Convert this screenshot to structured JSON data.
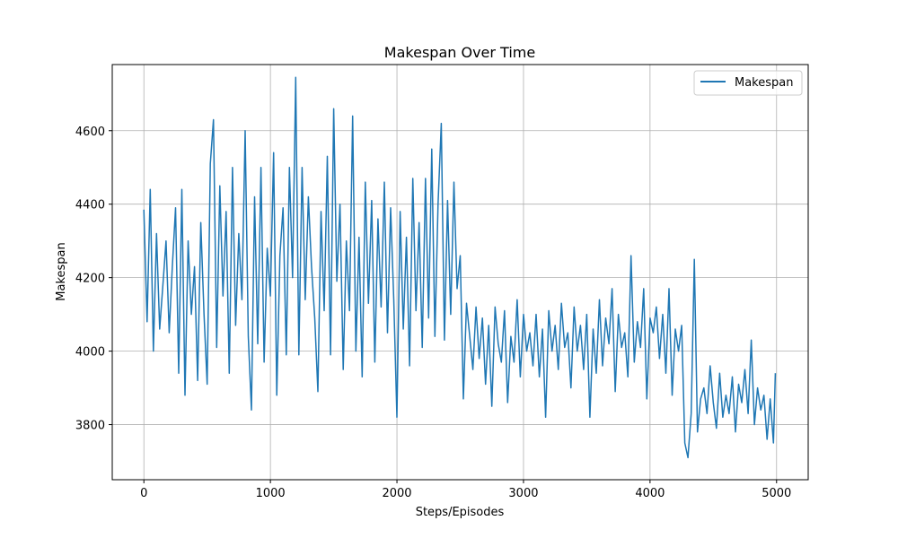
{
  "chart_data": {
    "type": "line",
    "title": "Makespan Over Time",
    "xlabel": "Steps/Episodes",
    "ylabel": "Makespan",
    "xlim": [
      -250,
      5250
    ],
    "ylim": [
      3650,
      4780
    ],
    "xticks": [
      0,
      1000,
      2000,
      3000,
      4000,
      5000
    ],
    "yticks": [
      3800,
      4000,
      4200,
      4400,
      4600
    ],
    "grid": true,
    "legend_position": "upper right",
    "series": [
      {
        "name": "Makespan",
        "color": "#1f77b4",
        "x": [
          0,
          25,
          50,
          75,
          100,
          125,
          150,
          175,
          200,
          225,
          250,
          275,
          300,
          325,
          350,
          375,
          400,
          425,
          450,
          475,
          500,
          525,
          550,
          575,
          600,
          625,
          650,
          675,
          700,
          725,
          750,
          775,
          800,
          825,
          850,
          875,
          900,
          925,
          950,
          975,
          1000,
          1025,
          1050,
          1075,
          1100,
          1125,
          1150,
          1175,
          1200,
          1225,
          1250,
          1275,
          1300,
          1325,
          1350,
          1375,
          1400,
          1425,
          1450,
          1475,
          1500,
          1525,
          1550,
          1575,
          1600,
          1625,
          1650,
          1675,
          1700,
          1725,
          1750,
          1775,
          1800,
          1825,
          1850,
          1875,
          1900,
          1925,
          1950,
          1975,
          2000,
          2025,
          2050,
          2075,
          2100,
          2125,
          2150,
          2175,
          2200,
          2225,
          2250,
          2275,
          2300,
          2325,
          2350,
          2375,
          2400,
          2425,
          2450,
          2475,
          2500,
          2525,
          2550,
          2575,
          2600,
          2625,
          2650,
          2675,
          2700,
          2725,
          2750,
          2775,
          2800,
          2825,
          2850,
          2875,
          2900,
          2925,
          2950,
          2975,
          3000,
          3025,
          3050,
          3075,
          3100,
          3125,
          3150,
          3175,
          3200,
          3225,
          3250,
          3275,
          3300,
          3325,
          3350,
          3375,
          3400,
          3425,
          3450,
          3475,
          3500,
          3525,
          3550,
          3575,
          3600,
          3625,
          3650,
          3675,
          3700,
          3725,
          3750,
          3775,
          3800,
          3825,
          3850,
          3875,
          3900,
          3925,
          3950,
          3975,
          4000,
          4025,
          4050,
          4075,
          4100,
          4125,
          4150,
          4175,
          4200,
          4225,
          4250,
          4275,
          4300,
          4325,
          4350,
          4375,
          4400,
          4425,
          4450,
          4475,
          4500,
          4525,
          4550,
          4575,
          4600,
          4625,
          4650,
          4675,
          4700,
          4725,
          4750,
          4775,
          4800,
          4825,
          4850,
          4875,
          4900,
          4925,
          4950,
          4975,
          4990
        ],
        "y": [
          4385,
          4080,
          4440,
          4000,
          4320,
          4060,
          4180,
          4300,
          4050,
          4230,
          4390,
          3940,
          4440,
          3880,
          4300,
          4100,
          4230,
          3920,
          4350,
          4100,
          3910,
          4510,
          4630,
          4010,
          4450,
          4150,
          4380,
          3940,
          4500,
          4070,
          4320,
          4140,
          4600,
          4040,
          3840,
          4420,
          4020,
          4500,
          3970,
          4280,
          4150,
          4540,
          3880,
          4260,
          4390,
          3990,
          4500,
          4200,
          4745,
          3990,
          4500,
          4140,
          4420,
          4230,
          4090,
          3890,
          4380,
          4110,
          4530,
          3990,
          4660,
          4190,
          4400,
          3950,
          4300,
          4110,
          4640,
          4000,
          4310,
          3930,
          4460,
          4130,
          4410,
          3970,
          4360,
          4120,
          4460,
          4050,
          4390,
          4140,
          3820,
          4380,
          4060,
          4310,
          3960,
          4470,
          4110,
          4350,
          4010,
          4470,
          4090,
          4550,
          4040,
          4400,
          4620,
          4030,
          4410,
          4100,
          4460,
          4170,
          4260,
          3870,
          4130,
          4040,
          3950,
          4120,
          3980,
          4090,
          3910,
          4070,
          3850,
          4120,
          4020,
          3970,
          4110,
          3860,
          4040,
          3970,
          4140,
          3930,
          4100,
          4000,
          4050,
          3960,
          4100,
          3930,
          4060,
          3820,
          4110,
          4000,
          4070,
          3950,
          4130,
          4010,
          4050,
          3900,
          4120,
          4000,
          4070,
          3950,
          4100,
          3820,
          4060,
          3940,
          4140,
          3960,
          4090,
          4020,
          4170,
          3890,
          4100,
          4010,
          4050,
          3930,
          4260,
          3970,
          4080,
          4010,
          4170,
          3870,
          4090,
          4050,
          4120,
          3980,
          4100,
          3940,
          4170,
          3880,
          4060,
          4000,
          4070,
          3750,
          3710,
          3830,
          4250,
          3780,
          3870,
          3900,
          3830,
          3960,
          3860,
          3790,
          3940,
          3820,
          3880,
          3830,
          3930,
          3780,
          3910,
          3860,
          3950,
          3830,
          4030,
          3800,
          3900,
          3840,
          3880,
          3760,
          3870,
          3750,
          3940
        ]
      }
    ]
  }
}
